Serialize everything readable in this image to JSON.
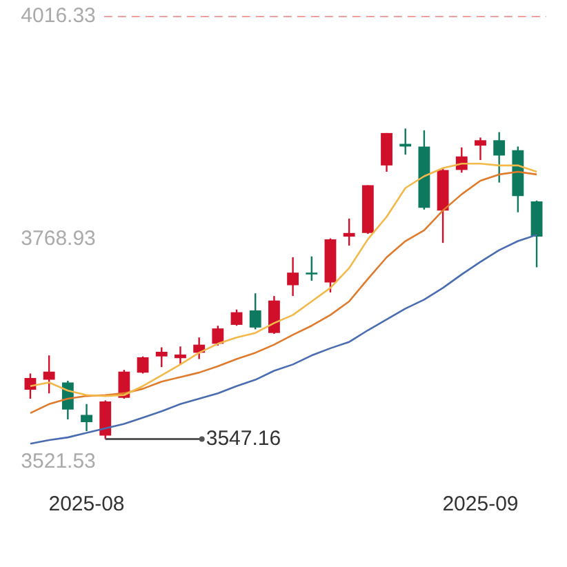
{
  "chart_data": {
    "type": "candlestick",
    "categories": [
      null,
      null,
      null,
      "2025-08",
      null,
      null,
      null,
      null,
      null,
      null,
      null,
      null,
      null,
      null,
      null,
      null,
      null,
      null,
      null,
      null,
      null,
      null,
      null,
      null,
      "2025-09",
      null,
      null,
      null
    ],
    "ohlc": [
      [
        3602,
        3620,
        3592,
        3615
      ],
      [
        3613,
        3640,
        3598,
        3622
      ],
      [
        3610,
        3612,
        3569,
        3580
      ],
      [
        3574,
        3586,
        3556,
        3566
      ],
      [
        3551,
        3590,
        3547.16,
        3589
      ],
      [
        3593,
        3624,
        3592,
        3622
      ],
      [
        3621,
        3639,
        3620,
        3638
      ],
      [
        3639,
        3649,
        3627,
        3644
      ],
      [
        3637,
        3650,
        3630,
        3641
      ],
      [
        3643,
        3660,
        3636,
        3652
      ],
      [
        3653,
        3673,
        3651,
        3670
      ],
      [
        3674,
        3691,
        3673,
        3688
      ],
      [
        3690,
        3709,
        3669,
        3671
      ],
      [
        3665,
        3706,
        3664,
        3701
      ],
      [
        3718,
        3749,
        3706,
        3732
      ],
      [
        3732,
        3750,
        3723,
        3730
      ],
      [
        3721,
        3770,
        3710,
        3769
      ],
      [
        3772,
        3792,
        3762,
        3776
      ],
      [
        3776,
        3829,
        3775,
        3829
      ],
      [
        3851,
        3887,
        3844,
        3887
      ],
      [
        3875,
        3892,
        3863,
        3872
      ],
      [
        3872,
        3890,
        3802,
        3804
      ],
      [
        3801,
        3848,
        3765,
        3846
      ],
      [
        3846,
        3871,
        3843,
        3861
      ],
      [
        3873,
        3882,
        3857,
        3879
      ],
      [
        3879,
        3888,
        3832,
        3862
      ],
      [
        3868,
        3872,
        3799,
        3817
      ],
      [
        3811,
        3812,
        3738,
        3772
      ]
    ],
    "colors": [
      "#d0102a",
      "#d0102a",
      "#0d7a5f",
      "#0d7a5f",
      "#d0102a",
      "#d0102a",
      "#d0102a",
      "#d0102a",
      "#d0102a",
      "#d0102a",
      "#d0102a",
      "#d0102a",
      "#0d7a5f",
      "#d0102a",
      "#d0102a",
      "#0d7a5f",
      "#d0102a",
      "#d0102a",
      "#d0102a",
      "#d0102a",
      "#0d7a5f",
      "#0d7a5f",
      "#d0102a",
      "#d0102a",
      "#d0102a",
      "#0d7a5f",
      "#0d7a5f",
      "#0d7a5f"
    ],
    "series": [
      {
        "type": "line",
        "color": "#f2b94a",
        "values": [
          3606,
          3610,
          3601,
          3596,
          3595,
          3596,
          3606,
          3618,
          3630,
          3643,
          3653,
          3660,
          3665,
          3676,
          3685,
          3700,
          3715,
          3737,
          3769,
          3794,
          3826,
          3839,
          3848,
          3853,
          3853,
          3851,
          3851,
          3844
        ]
      },
      {
        "type": "line",
        "color": "#e07b2c",
        "values": [
          3576,
          3586,
          3592,
          3595,
          3596,
          3598,
          3603,
          3611,
          3616,
          3621,
          3628,
          3636,
          3643,
          3652,
          3663,
          3673,
          3685,
          3700,
          3725,
          3749,
          3767,
          3779,
          3801,
          3819,
          3834,
          3841,
          3844,
          3841
        ]
      },
      {
        "type": "line",
        "color": "#4a6cb0",
        "values": [
          3542,
          3546,
          3549,
          3554,
          3559,
          3564,
          3571,
          3578,
          3586,
          3592,
          3598,
          3606,
          3613,
          3623,
          3630,
          3640,
          3648,
          3655,
          3668,
          3680,
          3692,
          3702,
          3715,
          3730,
          3744,
          3757,
          3767,
          3774
        ]
      }
    ],
    "ylim": [
      3521.53,
      4016.33
    ],
    "yticks": [
      3521.53,
      3768.93,
      4016.33
    ],
    "ref_lines": [
      {
        "axis": "y",
        "value": 4016.33,
        "color": "#f0a0a0",
        "line_style": "dashed"
      }
    ],
    "annotations": [
      "3547.16"
    ],
    "marker": "none",
    "line_style": "solid"
  }
}
